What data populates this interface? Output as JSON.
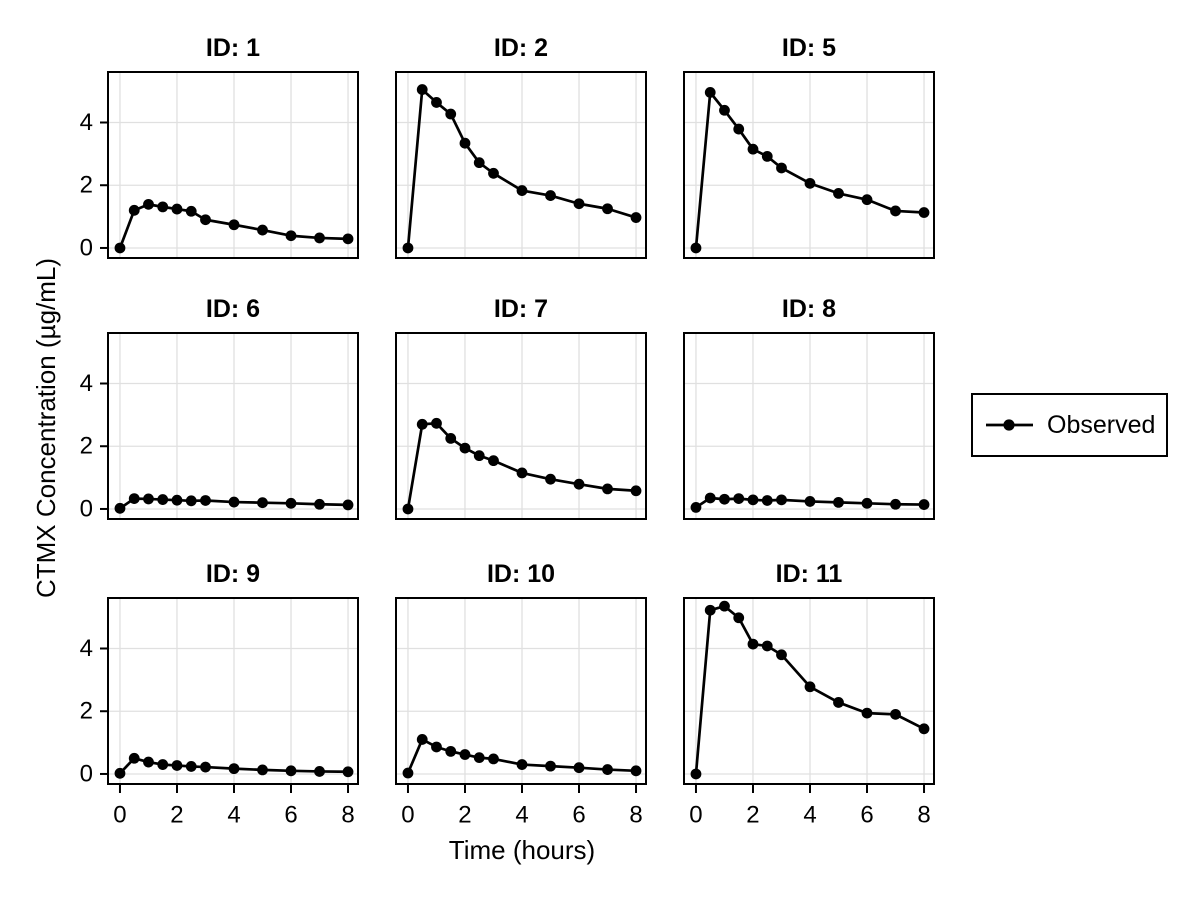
{
  "chart_data": {
    "type": "line",
    "title": "",
    "xlabel": "Time (hours)",
    "ylabel": "CTMX Concentration (µg/mL)",
    "legend": {
      "label": "Observed",
      "position": "right-of-figure",
      "marker": "filled-circle-on-line"
    },
    "x": [
      0,
      0.5,
      1,
      1.5,
      2,
      2.5,
      3,
      4,
      5,
      6,
      7,
      8
    ],
    "x_ticks": [
      0,
      2,
      4,
      6,
      8
    ],
    "y_ticks": [
      0,
      2,
      4
    ],
    "xlim": [
      -0.42,
      8.35
    ],
    "ylim": [
      -0.32,
      5.61
    ],
    "grid": true,
    "shared_axes": true,
    "layout": "3x3-facets",
    "colors": {
      "line": "#000000",
      "marker": "#000000",
      "grid": "#e0e0e0",
      "frame": "#000000",
      "text": "#000000",
      "background": "#ffffff"
    },
    "facets": [
      {
        "label": "ID: 1",
        "values": [
          0,
          1.2,
          1.39,
          1.31,
          1.24,
          1.17,
          0.9,
          0.74,
          0.57,
          0.39,
          0.32,
          0.29
        ]
      },
      {
        "label": "ID: 2",
        "values": [
          0,
          5.05,
          4.64,
          4.27,
          3.34,
          2.72,
          2.38,
          1.83,
          1.67,
          1.41,
          1.25,
          0.97
        ]
      },
      {
        "label": "ID: 5",
        "values": [
          0,
          4.96,
          4.39,
          3.79,
          3.15,
          2.92,
          2.55,
          2.06,
          1.74,
          1.54,
          1.18,
          1.13
        ]
      },
      {
        "label": "ID: 6",
        "values": [
          0.02,
          0.33,
          0.32,
          0.3,
          0.28,
          0.26,
          0.27,
          0.22,
          0.2,
          0.18,
          0.15,
          0.13
        ]
      },
      {
        "label": "ID: 7",
        "values": [
          0,
          2.7,
          2.73,
          2.25,
          1.94,
          1.7,
          1.54,
          1.15,
          0.95,
          0.79,
          0.64,
          0.58
        ]
      },
      {
        "label": "ID: 8",
        "values": [
          0.05,
          0.35,
          0.31,
          0.33,
          0.29,
          0.27,
          0.29,
          0.24,
          0.21,
          0.18,
          0.15,
          0.14
        ]
      },
      {
        "label": "ID: 9",
        "values": [
          0.02,
          0.5,
          0.38,
          0.3,
          0.27,
          0.24,
          0.22,
          0.17,
          0.13,
          0.1,
          0.08,
          0.07
        ]
      },
      {
        "label": "ID: 10",
        "values": [
          0.03,
          1.1,
          0.86,
          0.72,
          0.62,
          0.52,
          0.48,
          0.3,
          0.25,
          0.2,
          0.14,
          0.1
        ]
      },
      {
        "label": "ID: 11",
        "values": [
          0,
          5.22,
          5.35,
          4.98,
          4.14,
          4.08,
          3.8,
          2.78,
          2.28,
          1.94,
          1.9,
          1.44
        ]
      }
    ]
  }
}
